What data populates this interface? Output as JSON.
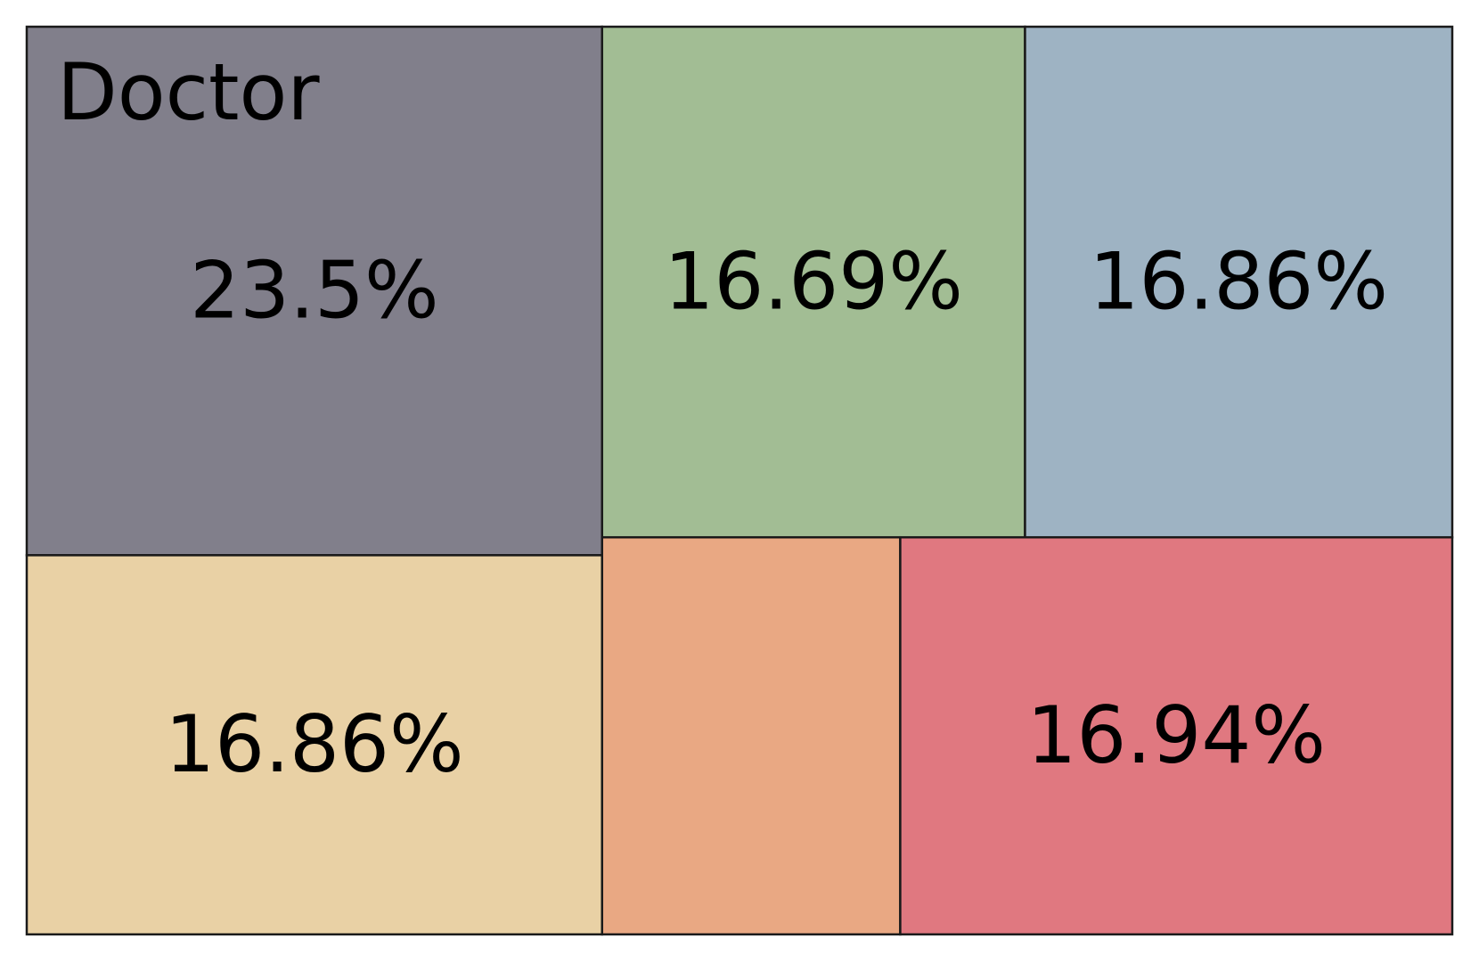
{
  "chart_data": {
    "type": "treemap",
    "categories": [
      "Doctor",
      null,
      null,
      null,
      null,
      null
    ],
    "values": [
      23.5,
      16.69,
      16.86,
      16.86,
      9.15,
      16.94
    ],
    "value_labels": [
      "23.5%",
      "16.69%",
      "16.86%",
      "16.86%",
      null,
      "16.94%"
    ],
    "colors": [
      "#817f8b",
      "#a2bd94",
      "#9eb3c3",
      "#e9d1a5",
      "#e9a883",
      "#e07880"
    ]
  }
}
